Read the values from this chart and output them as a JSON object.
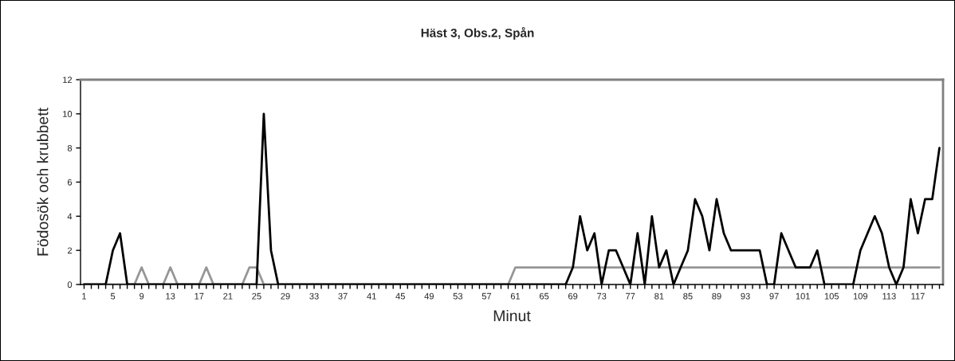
{
  "chart_data": {
    "type": "line",
    "title": "Häst 3, Obs.2, Spån",
    "xlabel": "Minut",
    "ylabel": "Födosök och krubbett",
    "categories": [
      "1",
      null,
      null,
      null,
      "5",
      null,
      null,
      null,
      "9",
      null,
      null,
      null,
      "13",
      null,
      null,
      null,
      "17",
      null,
      null,
      null,
      "21",
      null,
      null,
      null,
      "25",
      null,
      null,
      null,
      "29",
      null,
      null,
      null,
      "33",
      null,
      null,
      null,
      "37",
      null,
      null,
      null,
      "41",
      null,
      null,
      null,
      "45",
      null,
      null,
      null,
      "49",
      null,
      null,
      null,
      "53",
      null,
      null,
      null,
      "57",
      null,
      null,
      null,
      "61",
      null,
      null,
      null,
      "65",
      null,
      null,
      null,
      "69",
      null,
      null,
      null,
      "73",
      null,
      null,
      null,
      "77",
      null,
      null,
      null,
      "81",
      null,
      null,
      null,
      "85",
      null,
      null,
      null,
      "89",
      null,
      null,
      null,
      "93",
      null,
      null,
      null,
      "97",
      null,
      null,
      null,
      "101",
      null,
      null,
      null,
      "105",
      null,
      null,
      null,
      "109",
      null,
      null,
      null,
      "113",
      null,
      null,
      null,
      "117",
      null,
      null,
      null
    ],
    "series": [
      {
        "color": "#969696",
        "values": [
          0,
          0,
          0,
          0,
          0,
          0,
          0,
          0,
          1,
          0,
          0,
          0,
          1,
          0,
          0,
          0,
          0,
          1,
          0,
          0,
          0,
          0,
          0,
          1,
          1,
          0,
          0,
          0,
          0,
          0,
          0,
          0,
          0,
          0,
          0,
          0,
          0,
          0,
          0,
          0,
          0,
          0,
          0,
          0,
          0,
          0,
          0,
          0,
          0,
          0,
          0,
          0,
          0,
          0,
          0,
          0,
          0,
          0,
          0,
          0,
          1,
          1,
          1,
          1,
          1,
          1,
          1,
          1,
          1,
          1,
          1,
          1,
          1,
          1,
          1,
          1,
          1,
          1,
          1,
          1,
          1,
          1,
          1,
          1,
          1,
          1,
          1,
          1,
          1,
          1,
          1,
          1,
          1,
          1,
          1,
          1,
          1,
          1,
          1,
          1,
          1,
          1,
          1,
          1,
          1,
          1,
          1,
          1,
          1,
          1,
          1,
          1,
          1,
          1,
          1,
          1,
          1,
          1,
          1,
          1
        ]
      },
      {
        "color": "#000000",
        "values": [
          0,
          0,
          0,
          0,
          2,
          3,
          0,
          0,
          0,
          0,
          0,
          0,
          0,
          0,
          0,
          0,
          0,
          0,
          0,
          0,
          0,
          0,
          0,
          0,
          0,
          10,
          2,
          0,
          0,
          0,
          0,
          0,
          0,
          0,
          0,
          0,
          0,
          0,
          0,
          0,
          0,
          0,
          0,
          0,
          0,
          0,
          0,
          0,
          0,
          0,
          0,
          0,
          0,
          0,
          0,
          0,
          0,
          0,
          0,
          0,
          0,
          0,
          0,
          0,
          0,
          0,
          0,
          0,
          1,
          4,
          2,
          3,
          0,
          2,
          2,
          1,
          0,
          3,
          0,
          4,
          1,
          2,
          0,
          1,
          2,
          5,
          4,
          2,
          5,
          3,
          2,
          2,
          2,
          2,
          2,
          0,
          0,
          3,
          2,
          1,
          1,
          1,
          2,
          0,
          0,
          0,
          0,
          0,
          2,
          3,
          4,
          3,
          1,
          0,
          1,
          5,
          3,
          5,
          5,
          8
        ]
      }
    ],
    "ylim": [
      0,
      12
    ],
    "yticks": [
      0,
      2,
      4,
      6,
      8,
      10,
      12
    ],
    "grid": false,
    "marker": "none",
    "line_style": "solid"
  }
}
